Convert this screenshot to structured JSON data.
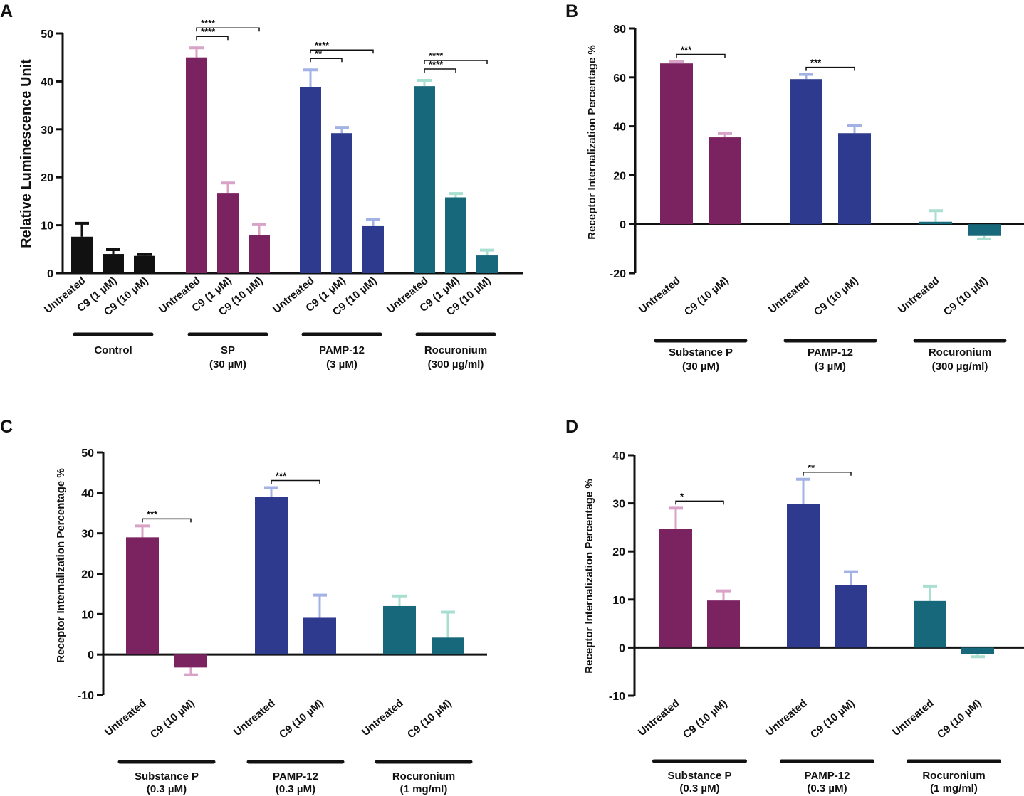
{
  "chart_data": [
    {
      "panel": "A",
      "type": "bar",
      "ylabel": "Relative Luminescence Unit",
      "ylim": [
        0,
        50
      ],
      "yticks": [
        0,
        10,
        20,
        30,
        40,
        50
      ],
      "groups": [
        {
          "name": "Control",
          "sub": "",
          "color": "#111111",
          "err_color": "#111111",
          "bars": [
            {
              "label": "Untreated",
              "value": 7.6,
              "err": 2.8
            },
            {
              "label": "C9 (1 µM)",
              "value": 4.0,
              "err": 0.9
            },
            {
              "label": "C9 (10 µM)",
              "value": 3.6,
              "err": 0.3
            }
          ]
        },
        {
          "name": "SP",
          "sub": "(30 µM)",
          "color": "#7b2261",
          "err_color": "#d9a3c8",
          "bars": [
            {
              "label": "Untreated",
              "value": 45.0,
              "err": 2.0
            },
            {
              "label": "C9 (1 µM)",
              "value": 16.6,
              "err": 2.2
            },
            {
              "label": "C9 (10 µM)",
              "value": 8.0,
              "err": 2.1
            }
          ]
        },
        {
          "name": "PAMP-12",
          "sub": "(3 µM)",
          "color": "#2e3a8e",
          "err_color": "#a3b2e5",
          "bars": [
            {
              "label": "Untreated",
              "value": 38.8,
              "err": 3.6
            },
            {
              "label": "C9 (1 µM)",
              "value": 29.2,
              "err": 1.2
            },
            {
              "label": "C9 (10 µM)",
              "value": 9.8,
              "err": 1.4
            }
          ]
        },
        {
          "name": "Rocuronium",
          "sub": "(300 µg/ml)",
          "color": "#17687a",
          "err_color": "#a9dfd1",
          "bars": [
            {
              "label": "Untreated",
              "value": 39.0,
              "err": 1.2
            },
            {
              "label": "C9 (1 µM)",
              "value": 15.8,
              "err": 0.8
            },
            {
              "label": "C9 (10 µM)",
              "value": 3.7,
              "err": 1.1
            }
          ]
        }
      ],
      "sig": [
        {
          "g": 1,
          "from": 0,
          "to": 2,
          "label": "****"
        },
        {
          "g": 1,
          "from": 0,
          "to": 1,
          "label": "****"
        },
        {
          "g": 2,
          "from": 0,
          "to": 2,
          "label": "****"
        },
        {
          "g": 2,
          "from": 0,
          "to": 1,
          "label": "**"
        },
        {
          "g": 3,
          "from": 0,
          "to": 2,
          "label": "****"
        },
        {
          "g": 3,
          "from": 0,
          "to": 1,
          "label": "****"
        }
      ]
    },
    {
      "panel": "B",
      "type": "bar",
      "ylabel": "Receptor Internalization Percentage %",
      "ylim": [
        -20,
        80
      ],
      "yticks": [
        -20,
        0,
        20,
        40,
        60,
        80
      ],
      "groups": [
        {
          "name": "Substance P",
          "sub": "(30 µM)",
          "color": "#7b2261",
          "err_color": "#d9a3c8",
          "bars": [
            {
              "label": "Untreated",
              "value": 65.7,
              "err": 0.8
            },
            {
              "label": "C9 (10 µM)",
              "value": 35.5,
              "err": 1.5
            }
          ]
        },
        {
          "name": "PAMP-12",
          "sub": "(3 µM)",
          "color": "#2e3a8e",
          "err_color": "#a3b2e5",
          "bars": [
            {
              "label": "Untreated",
              "value": 59.3,
              "err": 1.9
            },
            {
              "label": "C9 (10 µM)",
              "value": 37.2,
              "err": 3.0
            }
          ]
        },
        {
          "name": "Rocuronium",
          "sub": "(300 µg/ml)",
          "color": "#17687a",
          "err_color": "#a9dfd1",
          "bars": [
            {
              "label": "Untreated",
              "value": 1.0,
              "err": 4.5
            },
            {
              "label": "C9 (10 µM)",
              "value": -4.8,
              "err": 1.2
            }
          ]
        }
      ],
      "sig": [
        {
          "g": 0,
          "from": 0,
          "to": 1,
          "label": "***"
        },
        {
          "g": 1,
          "from": 0,
          "to": 1,
          "label": "***"
        }
      ]
    },
    {
      "panel": "C",
      "type": "bar",
      "ylabel": "Receptor Internalization Percentage %",
      "ylim": [
        -10,
        50
      ],
      "yticks": [
        -10,
        0,
        10,
        20,
        30,
        40,
        50
      ],
      "groups": [
        {
          "name": "Substance P",
          "sub": "(0.3 µM)",
          "color": "#7b2261",
          "err_color": "#d9a3c8",
          "bars": [
            {
              "label": "Untreated",
              "value": 29.0,
              "err": 2.8
            },
            {
              "label": "C9  (10 µM)",
              "value": -3.2,
              "err": 1.8
            }
          ]
        },
        {
          "name": "PAMP-12",
          "sub": "(0.3 µM)",
          "color": "#2e3a8e",
          "err_color": "#a3b2e5",
          "bars": [
            {
              "label": "Untreated",
              "value": 39.0,
              "err": 2.3
            },
            {
              "label": "C9  (10 µM)",
              "value": 9.1,
              "err": 5.6
            }
          ]
        },
        {
          "name": "Rocuronium",
          "sub": "(1 mg/ml)",
          "color": "#17687a",
          "err_color": "#a9dfd1",
          "bars": [
            {
              "label": "Untreated",
              "value": 12.0,
              "err": 2.5
            },
            {
              "label": "C9  (10 µM)",
              "value": 4.2,
              "err": 6.3
            }
          ]
        }
      ],
      "sig": [
        {
          "g": 0,
          "from": 0,
          "to": 1,
          "label": "***"
        },
        {
          "g": 1,
          "from": 0,
          "to": 1,
          "label": "***"
        }
      ]
    },
    {
      "panel": "D",
      "type": "bar",
      "ylabel": "Receptor Internalization Percentage %",
      "ylim": [
        -10,
        40
      ],
      "yticks": [
        -10,
        0,
        10,
        20,
        30,
        40
      ],
      "groups": [
        {
          "name": "Substance P",
          "sub": "(0.3 µM)",
          "color": "#7b2261",
          "err_color": "#d9a3c8",
          "bars": [
            {
              "label": "Untreated",
              "value": 24.7,
              "err": 4.3
            },
            {
              "label": "C9  (10 µM)",
              "value": 9.8,
              "err": 2.0
            }
          ]
        },
        {
          "name": "PAMP-12",
          "sub": "(0.3 µM)",
          "color": "#2e3a8e",
          "err_color": "#a3b2e5",
          "bars": [
            {
              "label": "Untreated",
              "value": 29.9,
              "err": 5.1
            },
            {
              "label": "C9  (10 µM)",
              "value": 13.0,
              "err": 2.8
            }
          ]
        },
        {
          "name": "Rocuronium",
          "sub": "(1 mg/ml)",
          "color": "#17687a",
          "err_color": "#a9dfd1",
          "bars": [
            {
              "label": "Untreated",
              "value": 9.7,
              "err": 3.1
            },
            {
              "label": "C9  (10 µM)",
              "value": -1.4,
              "err": 0.5
            }
          ]
        }
      ],
      "sig": [
        {
          "g": 0,
          "from": 0,
          "to": 1,
          "label": "*"
        },
        {
          "g": 1,
          "from": 0,
          "to": 1,
          "label": "**"
        }
      ]
    }
  ]
}
